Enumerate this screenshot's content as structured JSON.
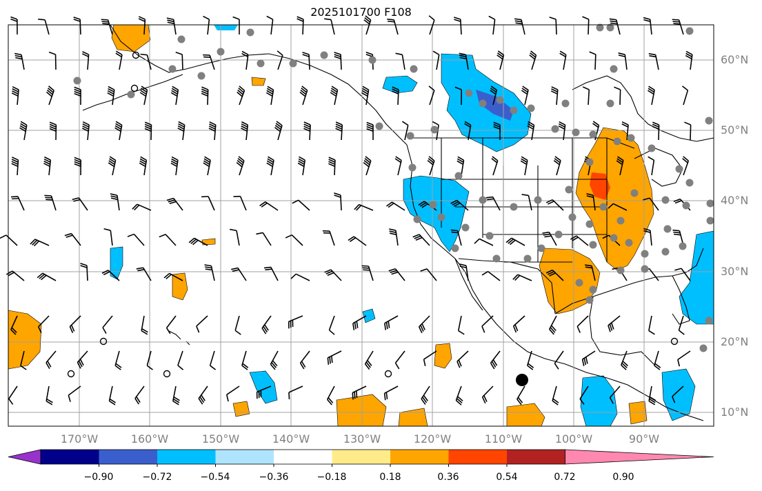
{
  "title": "2025101700 F108",
  "lat_labels": [
    "60°N",
    "50°N",
    "40°N",
    "30°N",
    "20°N",
    "10°N"
  ],
  "lon_labels": [
    "170°W",
    "160°W",
    "150°W",
    "140°W",
    "130°W",
    "120°W",
    "110°W",
    "100°W",
    "90°W"
  ],
  "colorbar": {
    "colors": [
      "#9932cc",
      "#00008b",
      "#3a5fcd",
      "#00bfff",
      "#afe4ff",
      "#ffffff",
      "#ffeb8a",
      "#ffa500",
      "#ff4500",
      "#b22222",
      "#ff88b0"
    ],
    "tick_labels": [
      "−0.90",
      "−0.72",
      "−0.54",
      "−0.36",
      "−0.18",
      "0.18",
      "0.36",
      "0.54",
      "0.72",
      "0.90"
    ]
  },
  "colors": {
    "grid": "#a0a0a0",
    "coast": "#000000",
    "station": "#808080",
    "label": "#808080"
  }
}
